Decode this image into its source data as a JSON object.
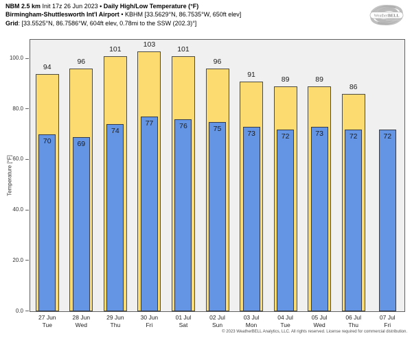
{
  "header": {
    "line1_bold1": "NBM 2.5 km",
    "line1_regular": " Init 17z 26 Jun 2023 ",
    "line1_sep": "• ",
    "line1_bold2": "Daily High/Low Temperature (°F)",
    "line2_bold": "Birmingham-Shuttlesworth Int'l Airport",
    "line2_sep": " • ",
    "line2_regular": "KBHM [33.5629°N, 86.7535°W, 650ft elev]",
    "line3_bold": "Grid",
    "line3_regular": ": [33.5525°N, 86.7586°W, 604ft elev, 0.78mi to the SSW (202.3)°]"
  },
  "logo": {
    "brand_weather": "Weather",
    "brand_bell": "BELL"
  },
  "footer": {
    "copyright": "© 2023 WeatherBELL Analytics, LLC. All rights reserved. License required for commercial distribution."
  },
  "chart_data": {
    "type": "bar",
    "title": "Daily High/Low Temperature (°F)",
    "ylabel": "Temperature [°F]",
    "xlabel": "",
    "grid": false,
    "legend": false,
    "ylim": [
      0,
      107.5
    ],
    "yticks": [
      0,
      20,
      40,
      60,
      80,
      100
    ],
    "ytick_labels": [
      "0.0",
      "20.0",
      "40.0",
      "60.0",
      "80.0",
      "100.0"
    ],
    "categories": [
      {
        "date": "27 Jun",
        "day": "Tue"
      },
      {
        "date": "28 Jun",
        "day": "Wed"
      },
      {
        "date": "29 Jun",
        "day": "Thu"
      },
      {
        "date": "30 Jun",
        "day": "Fri"
      },
      {
        "date": "01 Jul",
        "day": "Sat"
      },
      {
        "date": "02 Jul",
        "day": "Sun"
      },
      {
        "date": "03 Jul",
        "day": "Mon"
      },
      {
        "date": "04 Jul",
        "day": "Tue"
      },
      {
        "date": "05 Jul",
        "day": "Wed"
      },
      {
        "date": "06 Jul",
        "day": "Thu"
      },
      {
        "date": "07 Jul",
        "day": "Fri"
      }
    ],
    "series": [
      {
        "name": "Daily High",
        "color": "#fcdc71",
        "values": [
          94,
          96,
          101,
          103,
          101,
          96,
          91,
          89,
          89,
          86,
          null
        ]
      },
      {
        "name": "Daily Low",
        "color": "#6494e4",
        "values": [
          70,
          69,
          74,
          77,
          76,
          75,
          73,
          72,
          73,
          72,
          72
        ]
      }
    ]
  }
}
